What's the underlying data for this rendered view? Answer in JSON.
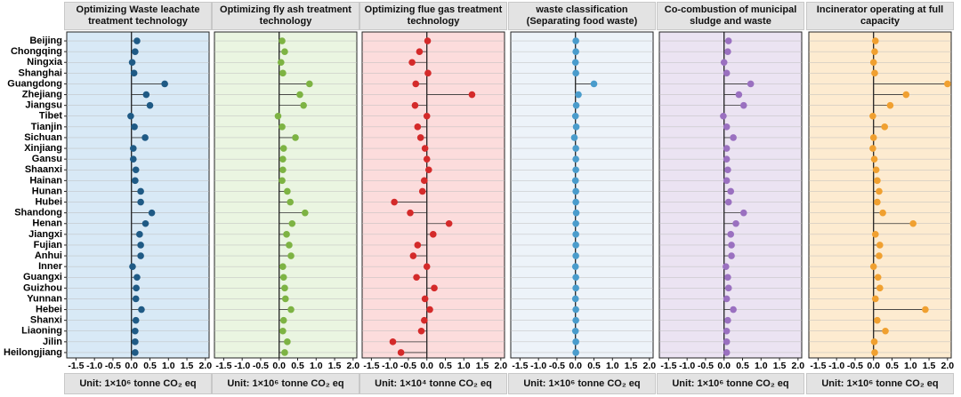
{
  "chart_data": [
    {
      "type": "lollipop",
      "title": "Optimizing Waste leachate treatment technology",
      "unit": "Unit: 1×10⁶ tonne CO₂ eq",
      "categories": [
        "Beijing",
        "Chongqing",
        "Ningxia",
        "Shanghai",
        "Guangdong",
        "Zhejiang",
        "Jiangsu",
        "Tibet",
        "Tianjin",
        "Sichuan",
        "Xinjiang",
        "Gansu",
        "Shaanxi",
        "Hainan",
        "Hunan",
        "Hubei",
        "Shandong",
        "Henan",
        "Jiangxi",
        "Fujian",
        "Anhui",
        "Inner",
        "Guangxi",
        "Guizhou",
        "Yunnan",
        "Hebei",
        "Shanxi",
        "Liaoning",
        "Jilin",
        "Heilongjiang"
      ],
      "values": [
        0.15,
        0.1,
        0.02,
        0.07,
        0.9,
        0.4,
        0.5,
        -0.02,
        0.08,
        0.37,
        0.05,
        0.05,
        0.12,
        0.1,
        0.25,
        0.25,
        0.55,
        0.38,
        0.22,
        0.25,
        0.25,
        0.03,
        0.15,
        0.13,
        0.12,
        0.27,
        0.12,
        0.1,
        0.1,
        0.1
      ],
      "color": "#1f5a85",
      "background": "#d8e9f6",
      "xlim": [
        -1.75,
        2.1
      ],
      "xticks": [
        {
          "value": -1.5,
          "label": "-1.5"
        },
        {
          "value": -1,
          "label": "-1.0"
        },
        {
          "value": -0.5,
          "label": "-0.5"
        },
        {
          "value": 0,
          "label": "0.0"
        },
        {
          "value": 0.5,
          "label": "0.5"
        },
        {
          "value": 1,
          "label": "1.0"
        },
        {
          "value": 1.5,
          "label": "1.5"
        },
        {
          "value": 2,
          "label": "2.0"
        }
      ]
    },
    {
      "type": "lollipop",
      "title": "Optimizing fly ash treatment technology",
      "unit": "Unit: 1×10⁶ tonne CO₂ eq",
      "values": [
        0.08,
        0.15,
        0.05,
        0.1,
        0.82,
        0.56,
        0.66,
        -0.03,
        0.08,
        0.44,
        0.12,
        0.1,
        0.1,
        0.08,
        0.22,
        0.3,
        0.7,
        0.35,
        0.2,
        0.27,
        0.32,
        0.1,
        0.12,
        0.15,
        0.17,
        0.32,
        0.12,
        0.1,
        0.22,
        0.15
      ],
      "color": "#7db343",
      "background": "#eaf5e1",
      "xlim": [
        -1.75,
        2.1
      ],
      "xticks": [
        {
          "value": -1.5,
          "label": "-1.5"
        },
        {
          "value": -1,
          "label": "-1.0"
        },
        {
          "value": -0.5,
          "label": "-0.5"
        },
        {
          "value": 0,
          "label": "0.0"
        },
        {
          "value": 0.5,
          "label": "0.5"
        },
        {
          "value": 1,
          "label": "1.0"
        },
        {
          "value": 1.5,
          "label": "1.5"
        },
        {
          "value": 2,
          "label": "2.0"
        }
      ]
    },
    {
      "type": "lollipop",
      "title": "Optimizing flue gas treatment technology",
      "unit": "Unit: 1×10⁴ tonne CO₂ eq",
      "values": [
        0.02,
        -0.2,
        -0.4,
        0.03,
        -0.3,
        1.22,
        -0.32,
        0,
        -0.25,
        -0.17,
        -0.05,
        0,
        0.05,
        -0.07,
        -0.12,
        -0.88,
        -0.45,
        0.6,
        0.17,
        -0.25,
        -0.37,
        0,
        -0.28,
        0.2,
        -0.05,
        0.08,
        -0.07,
        -0.15,
        -0.92,
        -0.7
      ],
      "color": "#d42a2a",
      "background": "#fcdcdc",
      "xlim": [
        -1.75,
        2.1
      ],
      "xticks": [
        {
          "value": -1.5,
          "label": "-1.5"
        },
        {
          "value": -1,
          "label": "-1.0"
        },
        {
          "value": -0.5,
          "label": "-0.5"
        },
        {
          "value": 0,
          "label": "0.0"
        },
        {
          "value": 0.5,
          "label": "0.5"
        },
        {
          "value": 1,
          "label": "1.0"
        },
        {
          "value": 1.5,
          "label": "1.5"
        },
        {
          "value": 2,
          "label": "2.0"
        }
      ]
    },
    {
      "type": "lollipop",
      "title": "waste classification (Separating food waste)",
      "unit": "Unit: 1×10⁶ tonne CO₂ eq",
      "values": [
        0.01,
        0.01,
        0,
        0.01,
        0.5,
        0.08,
        0.02,
        0,
        0.02,
        -0.03,
        0.01,
        0.01,
        0.01,
        0,
        0.01,
        0.01,
        0.02,
        0.01,
        0.01,
        0.01,
        0.01,
        0,
        0.01,
        0.01,
        0,
        0.01,
        0.01,
        0,
        0.01,
        0.01
      ],
      "color": "#4a9ccc",
      "background": "#edf3f9",
      "xlim": [
        -1.75,
        2.1
      ],
      "xticks": [
        {
          "value": -1.5,
          "label": "-1.5"
        },
        {
          "value": -1,
          "label": "-1.0"
        },
        {
          "value": -0.5,
          "label": "-0.5"
        },
        {
          "value": 0,
          "label": "0.0"
        },
        {
          "value": 0.5,
          "label": "0.5"
        },
        {
          "value": 1,
          "label": "1.0"
        },
        {
          "value": 1.5,
          "label": "1.5"
        },
        {
          "value": 2,
          "label": "2.0"
        }
      ]
    },
    {
      "type": "lollipop",
      "title": "Co-combustion of municipal sludge and waste",
      "unit": "Unit: 1×10⁶ tonne CO₂ eq",
      "values": [
        0.12,
        0.1,
        0,
        0.07,
        0.72,
        0.4,
        0.53,
        -0.02,
        0.07,
        0.25,
        0.07,
        0.07,
        0.1,
        0.07,
        0.18,
        0.12,
        0.53,
        0.32,
        0.18,
        0.2,
        0.2,
        0.05,
        0.1,
        0.12,
        0.07,
        0.25,
        0.1,
        0.07,
        0.07,
        0.07
      ],
      "color": "#9a70c0",
      "background": "#ebe3f2",
      "xlim": [
        -1.75,
        2.1
      ],
      "xticks": [
        {
          "value": -1.5,
          "label": "-1.5"
        },
        {
          "value": -1,
          "label": "-1.0"
        },
        {
          "value": -0.5,
          "label": "-0.5"
        },
        {
          "value": 0,
          "label": "0.0"
        },
        {
          "value": 0.5,
          "label": "0.5"
        },
        {
          "value": 1,
          "label": "1.0"
        },
        {
          "value": 1.5,
          "label": "1.5"
        },
        {
          "value": 2,
          "label": "2.0"
        }
      ]
    },
    {
      "type": "lollipop",
      "title": "Incinerator operating at full capacity",
      "unit": "Unit: 1×10⁶ tonne CO₂ eq",
      "values": [
        0.05,
        0.03,
        0,
        0.03,
        2,
        0.88,
        0.45,
        -0.02,
        0.3,
        0,
        -0.02,
        0.02,
        0.07,
        0.1,
        0.15,
        0.1,
        0.25,
        1.07,
        0.05,
        0.17,
        0.15,
        0,
        0.12,
        0.17,
        0.05,
        1.4,
        0.1,
        0.32,
        0.02,
        0.03
      ],
      "color": "#f0a030",
      "background": "#fdebd0",
      "xlim": [
        -1.75,
        2.1
      ],
      "xticks": [
        {
          "value": -1.5,
          "label": "-1.5"
        },
        {
          "value": -1,
          "label": "-1.0"
        },
        {
          "value": -0.5,
          "label": "-0.5"
        },
        {
          "value": 0,
          "label": "0.0"
        },
        {
          "value": 0.5,
          "label": "0.5"
        },
        {
          "value": 1,
          "label": "1.0"
        },
        {
          "value": 1.5,
          "label": "1.5"
        },
        {
          "value": 2,
          "label": "2.0"
        }
      ]
    }
  ]
}
